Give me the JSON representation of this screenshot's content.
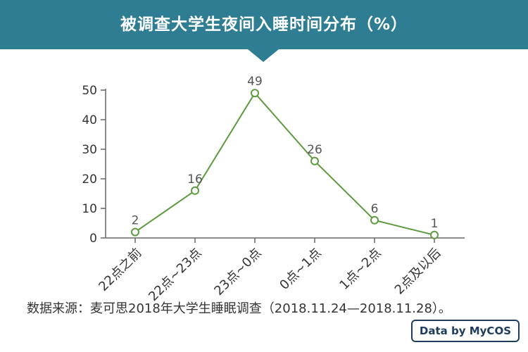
{
  "header": {
    "title": "被调查大学生夜间入睡时间分布（%）"
  },
  "chart_data": {
    "type": "line",
    "title": "被调查大学生夜间入睡时间分布（%）",
    "categories": [
      "22点之前",
      "22点~23点",
      "23点~0点",
      "0点~1点",
      "1点~2点",
      "2点及以后"
    ],
    "values": [
      2,
      16,
      49,
      26,
      6,
      1
    ],
    "data_labels": [
      "2",
      "16",
      "49",
      "26",
      "6",
      "1"
    ],
    "ylim": [
      0,
      50
    ],
    "yticks": [
      0,
      10,
      20,
      30,
      40,
      50
    ],
    "ytick_labels": [
      "0",
      "10",
      "20",
      "30",
      "40",
      "50"
    ],
    "grid": false,
    "line_color": "#5e9a3f",
    "marker": "hollow-circle",
    "label_color": "#555555"
  },
  "footnote": "数据来源：麦可思2018年大学生睡眠调查（2018.11.24—2018.11.28）。",
  "logo": {
    "text": "Data by MyCOS"
  },
  "colors": {
    "banner": "#2f7d92",
    "axis": "#666666"
  }
}
